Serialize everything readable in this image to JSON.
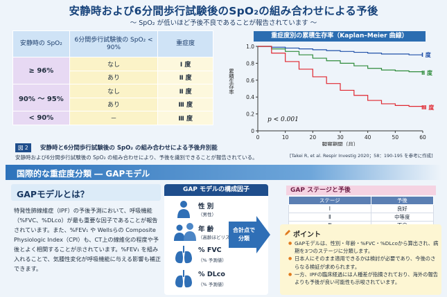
{
  "header": {
    "title": "安静時および6分間歩行試験後のSpO₂の組み合わせによる予後",
    "subtitle": "～ SpO₂ が低いほど予後不良であることが報告されています ～"
  },
  "prognosis_table": {
    "headers": [
      "安静時の SpO₂",
      "6分間歩行試験後の SpO₂ < 90%",
      "重症度"
    ],
    "rows": [
      {
        "spo2": "≥ 96%",
        "walk": "なし",
        "grade": "Ⅰ 度"
      },
      {
        "spo2": "",
        "walk": "あり",
        "grade": "Ⅱ 度"
      },
      {
        "spo2": "90% ～ 95%",
        "walk": "なし",
        "grade": "Ⅱ 度"
      },
      {
        "spo2": "",
        "walk": "あり",
        "grade": "Ⅲ 度"
      },
      {
        "spo2": "< 90%",
        "walk": "－",
        "grade": "Ⅲ 度"
      }
    ]
  },
  "chart_header": "重症度別の累積生存率（Kaplan–Meier 曲線）",
  "chart_data": {
    "type": "line",
    "title": "重症度別の累積生存率（Kaplan–Meier 曲線）",
    "xlabel": "観察期間（月）",
    "ylabel": "累積生存率",
    "xlim": [
      0,
      60
    ],
    "ylim": [
      0,
      1.0
    ],
    "xticks": [
      0,
      10,
      20,
      30,
      40,
      50,
      60
    ],
    "yticks": [
      "0",
      "0.2",
      "0.4",
      "0.6",
      "0.8",
      "1.0"
    ],
    "annotation": "p < 0.001",
    "series": [
      {
        "name": "Ⅰ 度",
        "color": "#1f4fa8",
        "x": [
          0,
          5,
          10,
          15,
          20,
          25,
          30,
          35,
          40,
          45,
          50,
          55,
          60
        ],
        "y": [
          1.0,
          0.99,
          0.98,
          0.97,
          0.96,
          0.95,
          0.94,
          0.93,
          0.92,
          0.91,
          0.91,
          0.9,
          0.9
        ]
      },
      {
        "name": "Ⅱ 度",
        "color": "#2e8b3a",
        "x": [
          0,
          5,
          10,
          15,
          20,
          25,
          30,
          35,
          40,
          45,
          50,
          55,
          60
        ],
        "y": [
          1.0,
          0.97,
          0.94,
          0.9,
          0.86,
          0.83,
          0.8,
          0.77,
          0.74,
          0.72,
          0.71,
          0.7,
          0.69
        ]
      },
      {
        "name": "Ⅲ 度",
        "color": "#e0262f",
        "x": [
          0,
          5,
          10,
          15,
          20,
          25,
          30,
          35,
          40,
          45,
          50,
          55,
          60
        ],
        "y": [
          1.0,
          0.92,
          0.82,
          0.73,
          0.64,
          0.56,
          0.48,
          0.42,
          0.36,
          0.32,
          0.3,
          0.29,
          0.28
        ]
      }
    ]
  },
  "figure": {
    "badge": "図 2",
    "caption": "安静時と6分間歩行試験後の SpO₂ の組み合わせによる予後弁別能",
    "note": "安静時および6分間歩行試験後の SpO₂ の組み合わせにより、予後を識別できることが報告されている。",
    "source": "[Takei R, et al. Respir Investig 2020；58：190-195 を参考に作成]"
  },
  "section": {
    "title": "国際的な重症度分類 ― GAPモデル"
  },
  "gap": {
    "heading": "GAPモデルとは？",
    "body": "特発性肺線維症（IPF）の予後予測において、呼吸機能（%FVC、%DLco）が最も重要な因子であることが報告されています。また、%FEV₁ や Wellsらの Composite Physiologic Index（CPI）も、CT上の線維化の程度や予後とよく相関することが示されています。%FEV₁ を組み入れることで、気腫性変化が呼吸機能に与える影響も補正できます。"
  },
  "factors": {
    "heading": "GAP モデルの構成因子",
    "items": [
      {
        "name": "性 別",
        "sub": "（男性）",
        "icon": "person-icon"
      },
      {
        "name": "年 齢",
        "sub": "（高齢ほどリスク上昇）",
        "icon": "people-age-icon"
      },
      {
        "name": "% FVC",
        "sub": "（% 予測値）",
        "icon": "lungs-icon"
      },
      {
        "name": "% DLco",
        "sub": "（% 予測値）",
        "icon": "lungs-icon"
      }
    ],
    "arrow_label": "合計点で分類"
  },
  "stage": {
    "heading": "GAP ステージと予後",
    "headers": [
      "ステージ",
      "予後"
    ],
    "rows": [
      {
        "stage": "Ⅰ",
        "prognosis": "良好"
      },
      {
        "stage": "Ⅱ",
        "prognosis": "中等度"
      },
      {
        "stage": "Ⅲ",
        "prognosis": "不良"
      }
    ]
  },
  "point": {
    "heading": "ポイント",
    "items": [
      "GAPモデルは、性別・年齢・%FVC・%DLcoから算出され、病期を3つのステージに分類します。",
      "日本人にそのまま適用できるかは検討が必要であり、今後のさらなる検証が求められます。",
      "一方、IPFの臨床経過には人種差が指摘されており、海外の報告よりも予後が良い可能性も示唆されています。"
    ]
  },
  "colors": {
    "primary": "#1f4e8c",
    "accent_pink": "#f5d3e2",
    "point_bg": "#fdf6d3"
  }
}
